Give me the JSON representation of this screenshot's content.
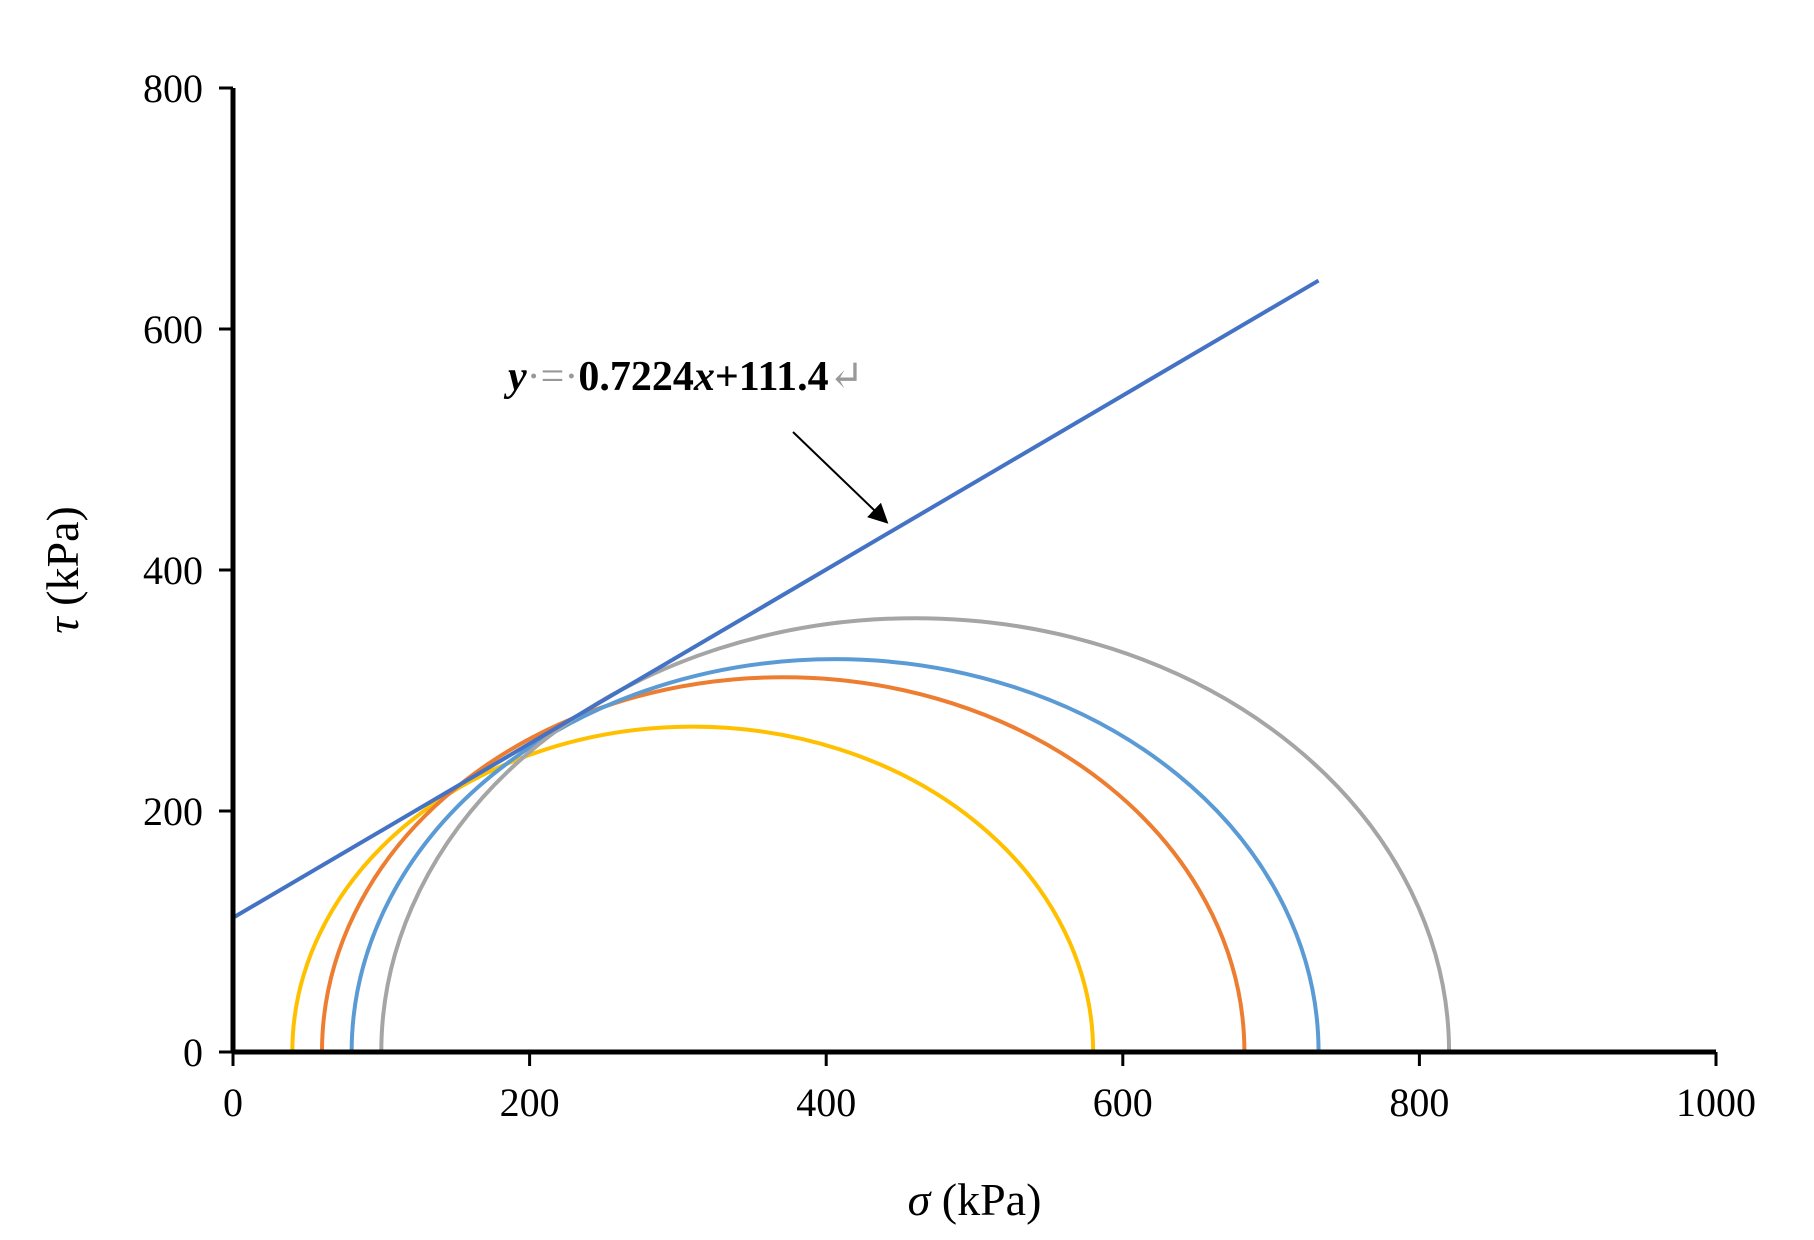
{
  "chart_data": {
    "type": "line",
    "xlabel_symbol": "σ",
    "xlabel_unit": " (kPa)",
    "ylabel_symbol": "τ",
    "ylabel_unit": " (kPa)",
    "xlim": [
      0,
      1000
    ],
    "ylim": [
      0,
      800
    ],
    "x_ticks": [
      0,
      200,
      400,
      600,
      800,
      1000
    ],
    "y_ticks": [
      0,
      200,
      400,
      600,
      800
    ],
    "grid": false,
    "legend": "none",
    "envelope": {
      "slope": 0.7224,
      "intercept": 111.4,
      "x_start": 0,
      "x_end": 732,
      "color": "#4472c4"
    },
    "circles": [
      {
        "sigma3": 40,
        "sigma1": 580,
        "color": "#ffc000"
      },
      {
        "sigma3": 60,
        "sigma1": 682,
        "color": "#ed7d31"
      },
      {
        "sigma3": 80,
        "sigma1": 732,
        "color": "#5b9bd5"
      },
      {
        "sigma3": 100,
        "sigma1": 820,
        "color": "#a5a5a5"
      }
    ],
    "annotation": {
      "parts": [
        {
          "text": "y",
          "italic": true
        },
        {
          "text": "·=·",
          "italic": false,
          "muted": true
        },
        {
          "text": "0.7224",
          "italic": false
        },
        {
          "text": "x",
          "italic": true
        },
        {
          "text": "+111.4",
          "italic": false
        },
        {
          "text": "↵",
          "italic": false,
          "muted": true
        }
      ],
      "arrow_target_x": 445
    }
  }
}
